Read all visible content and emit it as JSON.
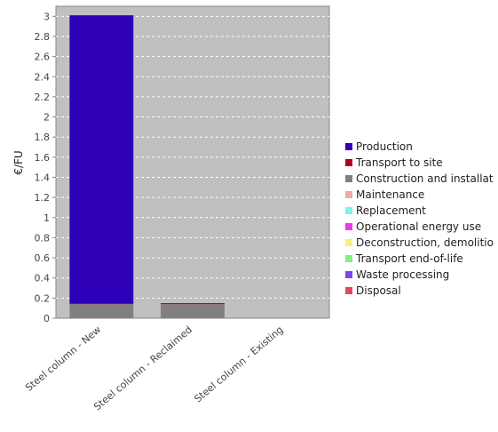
{
  "chart_data": {
    "type": "bar",
    "stacked": true,
    "categories": [
      "Steel column - New",
      "Steel column - Reclaimed",
      "Steel column - Existing"
    ],
    "ylabel": "€/FU",
    "xlabel": "",
    "ylim": [
      0,
      3.1
    ],
    "yticks": [
      "0",
      "0.2",
      "0.4",
      "0.6",
      "0.8",
      "1",
      "1.2",
      "1.4",
      "1.6",
      "1.8",
      "2",
      "2.2",
      "2.4",
      "2.6",
      "2.8",
      "3"
    ],
    "grid": true,
    "legend_position": "right",
    "plot_background": "#c0c0c0",
    "series": [
      {
        "name": "Production",
        "color": "#2e00b8",
        "values": [
          2.86,
          0,
          0
        ]
      },
      {
        "name": "Transport to site",
        "color": "#b0002a",
        "values": [
          0.01,
          0.01,
          0
        ]
      },
      {
        "name": "Construction and installat",
        "color": "#808080",
        "values": [
          0.14,
          0.14,
          0
        ]
      },
      {
        "name": "Maintenance",
        "color": "#f2a8a8",
        "values": [
          0,
          0,
          0
        ]
      },
      {
        "name": "Replacement",
        "color": "#7ff2f2",
        "values": [
          0,
          0,
          0
        ]
      },
      {
        "name": "Operational energy use",
        "color": "#e63ee6",
        "values": [
          0,
          0,
          0
        ]
      },
      {
        "name": "Deconstruction, demolitio",
        "color": "#f2f27f",
        "values": [
          0,
          0,
          0
        ]
      },
      {
        "name": "Transport end-of-life",
        "color": "#7ff27f",
        "values": [
          0,
          0,
          0
        ]
      },
      {
        "name": "Waste processing",
        "color": "#7f44f2",
        "values": [
          0,
          0,
          0
        ]
      },
      {
        "name": "Disposal",
        "color": "#e64855",
        "values": [
          0,
          0,
          0
        ]
      }
    ]
  }
}
